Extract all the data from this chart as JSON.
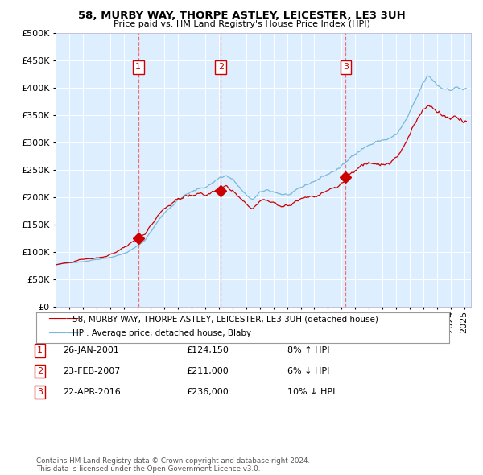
{
  "title1": "58, MURBY WAY, THORPE ASTLEY, LEICESTER, LE3 3UH",
  "title2": "Price paid vs. HM Land Registry's House Price Index (HPI)",
  "legend1": "58, MURBY WAY, THORPE ASTLEY, LEICESTER, LE3 3UH (detached house)",
  "legend2": "HPI: Average price, detached house, Blaby",
  "transactions": [
    {
      "num": 1,
      "date": "26-JAN-2001",
      "price": 124150,
      "pct": "8%",
      "dir": "↑",
      "x_year": 2001.07
    },
    {
      "num": 2,
      "date": "23-FEB-2007",
      "price": 211000,
      "pct": "6%",
      "dir": "↓",
      "x_year": 2007.13
    },
    {
      "num": 3,
      "date": "22-APR-2016",
      "price": 236000,
      "pct": "10%",
      "dir": "↓",
      "x_year": 2016.3
    }
  ],
  "hpi_color": "#7ab8d9",
  "price_color": "#cc0000",
  "bg_color": "#ddeeff",
  "grid_color": "#ffffff",
  "vline_color": "#ff5555",
  "marker_color": "#cc0000",
  "box_color": "#cc0000",
  "ylim": [
    0,
    500000
  ],
  "xlim_start": 1995.0,
  "xlim_end": 2025.5,
  "footer": "Contains HM Land Registry data © Crown copyright and database right 2024.\nThis data is licensed under the Open Government Licence v3.0."
}
